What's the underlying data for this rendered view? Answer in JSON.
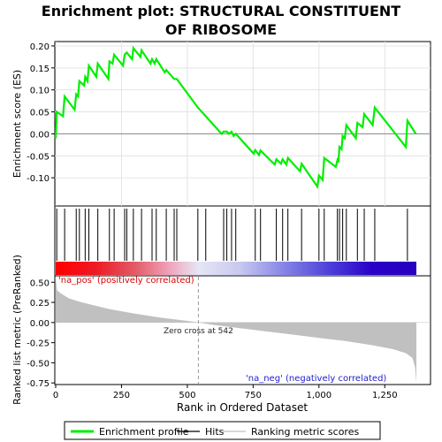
{
  "chart_data": {
    "type": "line",
    "title": "Enrichment plot: STRUCTURAL CONSTITUENT OF RIBOSOME",
    "xlabel": "Rank in Ordered Dataset",
    "xlim": [
      0,
      1370
    ],
    "xticks": [
      0,
      250,
      500,
      750,
      1000,
      1250
    ],
    "xtick_labels": [
      "0",
      "250",
      "500",
      "750",
      "1,000",
      "1,250"
    ],
    "enrichment_panel": {
      "ylabel": "Enrichment score (ES)",
      "ylim": [
        -0.14,
        0.21
      ],
      "yticks": [
        -0.1,
        -0.05,
        0.0,
        0.05,
        0.1,
        0.15,
        0.2
      ],
      "ytick_labels": [
        "-0.10",
        "-0.05",
        "0.00",
        "0.05",
        "0.10",
        "0.15",
        "0.20"
      ],
      "line_color": "#00ee00",
      "points": [
        [
          0,
          -0.01
        ],
        [
          4,
          0.05
        ],
        [
          28,
          0.04
        ],
        [
          34,
          0.085
        ],
        [
          72,
          0.055
        ],
        [
          78,
          0.09
        ],
        [
          85,
          0.085
        ],
        [
          90,
          0.12
        ],
        [
          108,
          0.11
        ],
        [
          112,
          0.13
        ],
        [
          121,
          0.12
        ],
        [
          126,
          0.155
        ],
        [
          154,
          0.13
        ],
        [
          160,
          0.16
        ],
        [
          200,
          0.125
        ],
        [
          204,
          0.165
        ],
        [
          216,
          0.16
        ],
        [
          222,
          0.18
        ],
        [
          256,
          0.155
        ],
        [
          262,
          0.18
        ],
        [
          270,
          0.185
        ],
        [
          290,
          0.17
        ],
        [
          295,
          0.195
        ],
        [
          322,
          0.175
        ],
        [
          326,
          0.19
        ],
        [
          360,
          0.16
        ],
        [
          366,
          0.17
        ],
        [
          376,
          0.16
        ],
        [
          382,
          0.17
        ],
        [
          414,
          0.14
        ],
        [
          420,
          0.145
        ],
        [
          450,
          0.125
        ],
        [
          460,
          0.125
        ],
        [
          540,
          0.06
        ],
        [
          570,
          0.04
        ],
        [
          630,
          0.0
        ],
        [
          638,
          0.005
        ],
        [
          650,
          0.005
        ],
        [
          658,
          0.0
        ],
        [
          668,
          0.005
        ],
        [
          676,
          -0.005
        ],
        [
          684,
          0.0
        ],
        [
          752,
          -0.045
        ],
        [
          758,
          -0.037
        ],
        [
          772,
          -0.048
        ],
        [
          778,
          -0.038
        ],
        [
          832,
          -0.07
        ],
        [
          838,
          -0.058
        ],
        [
          856,
          -0.068
        ],
        [
          862,
          -0.058
        ],
        [
          876,
          -0.07
        ],
        [
          882,
          -0.055
        ],
        [
          928,
          -0.085
        ],
        [
          934,
          -0.068
        ],
        [
          994,
          -0.12
        ],
        [
          1000,
          -0.095
        ],
        [
          1014,
          -0.105
        ],
        [
          1020,
          -0.055
        ],
        [
          1064,
          -0.075
        ],
        [
          1070,
          -0.06
        ],
        [
          1074,
          -0.065
        ],
        [
          1078,
          -0.03
        ],
        [
          1086,
          -0.035
        ],
        [
          1090,
          -0.005
        ],
        [
          1098,
          -0.01
        ],
        [
          1104,
          0.02
        ],
        [
          1140,
          -0.01
        ],
        [
          1146,
          0.025
        ],
        [
          1166,
          0.015
        ],
        [
          1172,
          0.045
        ],
        [
          1204,
          0.02
        ],
        [
          1212,
          0.06
        ],
        [
          1330,
          -0.03
        ],
        [
          1336,
          0.03
        ],
        [
          1368,
          0.0
        ]
      ]
    },
    "hits_panel": {
      "hit_positions": [
        4,
        34,
        78,
        90,
        112,
        126,
        160,
        204,
        222,
        262,
        270,
        295,
        326,
        366,
        382,
        420,
        450,
        460,
        540,
        570,
        638,
        650,
        668,
        684,
        758,
        778,
        838,
        862,
        882,
        934,
        1000,
        1020,
        1070,
        1078,
        1090,
        1104,
        1146,
        1172,
        1212,
        1336
      ],
      "colorbar_stops": [
        {
          "rank": 0,
          "color": "#ff0000"
        },
        {
          "rank": 150,
          "color": "#ee1a22"
        },
        {
          "rank": 300,
          "color": "#e35a66"
        },
        {
          "rank": 440,
          "color": "#f0a8c0"
        },
        {
          "rank": 542,
          "color": "#e6e6f6"
        },
        {
          "rank": 700,
          "color": "#c8c8f0"
        },
        {
          "rank": 880,
          "color": "#8080e6"
        },
        {
          "rank": 1050,
          "color": "#4a3cd8"
        },
        {
          "rank": 1200,
          "color": "#2a00c8"
        },
        {
          "rank": 1370,
          "color": "#2800c0"
        }
      ]
    },
    "metric_panel": {
      "ylabel": "Ranked list metric (PreRanked)",
      "ylim": [
        -0.77,
        0.58
      ],
      "yticks": [
        -0.75,
        -0.5,
        -0.25,
        0.0,
        0.25,
        0.5
      ],
      "ytick_labels": [
        "-0.75",
        "-0.50",
        "-0.25",
        "0.00",
        "0.25",
        "0.50"
      ],
      "zero_cross": 542,
      "zero_cross_label": "Zero cross at 542",
      "pos_label": "'na_pos' (positively correlated)",
      "neg_label": "'na_neg' (negatively correlated)",
      "fill_color": "#c0c0c0",
      "profile": [
        [
          0,
          0.55
        ],
        [
          5,
          0.4
        ],
        [
          20,
          0.36
        ],
        [
          50,
          0.3
        ],
        [
          100,
          0.25
        ],
        [
          200,
          0.17
        ],
        [
          300,
          0.11
        ],
        [
          400,
          0.06
        ],
        [
          500,
          0.02
        ],
        [
          542,
          0.0
        ],
        [
          600,
          -0.03
        ],
        [
          700,
          -0.07
        ],
        [
          800,
          -0.11
        ],
        [
          900,
          -0.15
        ],
        [
          1000,
          -0.19
        ],
        [
          1100,
          -0.23
        ],
        [
          1200,
          -0.28
        ],
        [
          1280,
          -0.33
        ],
        [
          1330,
          -0.38
        ],
        [
          1355,
          -0.44
        ],
        [
          1365,
          -0.55
        ],
        [
          1370,
          -0.75
        ]
      ]
    },
    "legend": {
      "placement": "bottom",
      "entries": [
        {
          "label": "Enrichment profile",
          "color": "#00ee00",
          "kind": "line"
        },
        {
          "label": "Hits",
          "color": "#000000",
          "kind": "line"
        },
        {
          "label": "Ranking metric scores",
          "color": "#c0c0c0",
          "kind": "line"
        }
      ]
    }
  }
}
